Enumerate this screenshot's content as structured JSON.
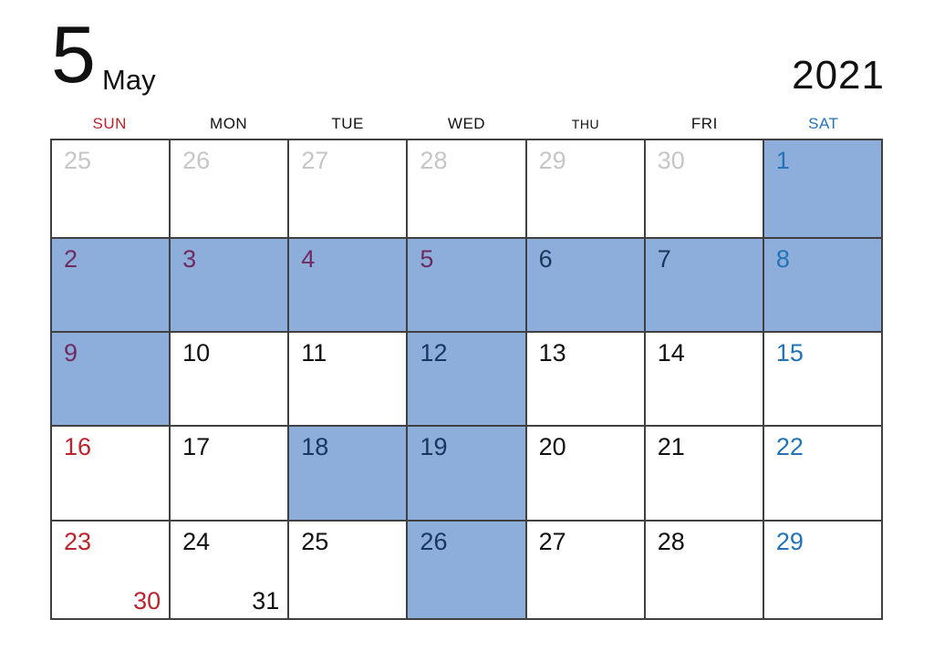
{
  "header": {
    "month_number": "5",
    "month_name": "May",
    "year": "2021"
  },
  "colors": {
    "highlight-bg": "#8dadda",
    "border": "#404040",
    "sunday-red": "#bb232e",
    "saturday-blue": "#2373b9",
    "holiday-purple": "#6f2b60",
    "navy-on-blue": "#17375e",
    "muted-gray": "#c6c6c6",
    "text-black": "#111111"
  },
  "weekdays": [
    {
      "label": "SUN",
      "variant": "sunday",
      "small": false
    },
    {
      "label": "MON",
      "variant": "normal",
      "small": false
    },
    {
      "label": "TUE",
      "variant": "normal",
      "small": false
    },
    {
      "label": "WED",
      "variant": "normal",
      "small": false
    },
    {
      "label": "THU",
      "variant": "normal",
      "small": true
    },
    {
      "label": "FRI",
      "variant": "normal",
      "small": false
    },
    {
      "label": "SAT",
      "variant": "saturday",
      "small": false
    }
  ],
  "weeks": [
    [
      {
        "day": "25",
        "variant": "muted",
        "highlighted": false
      },
      {
        "day": "26",
        "variant": "muted",
        "highlighted": false
      },
      {
        "day": "27",
        "variant": "muted",
        "highlighted": false
      },
      {
        "day": "28",
        "variant": "muted",
        "highlighted": false
      },
      {
        "day": "29",
        "variant": "muted",
        "highlighted": false
      },
      {
        "day": "30",
        "variant": "muted",
        "highlighted": false
      },
      {
        "day": "1",
        "variant": "saturday",
        "highlighted": true
      }
    ],
    [
      {
        "day": "2",
        "variant": "holiday",
        "highlighted": true
      },
      {
        "day": "3",
        "variant": "holiday",
        "highlighted": true
      },
      {
        "day": "4",
        "variant": "holiday",
        "highlighted": true
      },
      {
        "day": "5",
        "variant": "holiday",
        "highlighted": true
      },
      {
        "day": "6",
        "variant": "navy",
        "highlighted": true
      },
      {
        "day": "7",
        "variant": "navy",
        "highlighted": true
      },
      {
        "day": "8",
        "variant": "saturday",
        "highlighted": true
      }
    ],
    [
      {
        "day": "9",
        "variant": "holiday",
        "highlighted": true
      },
      {
        "day": "10",
        "variant": "normal",
        "highlighted": false
      },
      {
        "day": "11",
        "variant": "normal",
        "highlighted": false
      },
      {
        "day": "12",
        "variant": "navy",
        "highlighted": true
      },
      {
        "day": "13",
        "variant": "normal",
        "highlighted": false
      },
      {
        "day": "14",
        "variant": "normal",
        "highlighted": false
      },
      {
        "day": "15",
        "variant": "saturday",
        "highlighted": false
      }
    ],
    [
      {
        "day": "16",
        "variant": "sunday",
        "highlighted": false
      },
      {
        "day": "17",
        "variant": "normal",
        "highlighted": false
      },
      {
        "day": "18",
        "variant": "navy",
        "highlighted": true
      },
      {
        "day": "19",
        "variant": "navy",
        "highlighted": true
      },
      {
        "day": "20",
        "variant": "normal",
        "highlighted": false
      },
      {
        "day": "21",
        "variant": "normal",
        "highlighted": false
      },
      {
        "day": "22",
        "variant": "saturday",
        "highlighted": false
      }
    ],
    [
      {
        "day": "23",
        "variant": "sunday",
        "highlighted": false,
        "extra": {
          "day": "30",
          "variant": "sunday"
        }
      },
      {
        "day": "24",
        "variant": "normal",
        "highlighted": false,
        "extra": {
          "day": "31",
          "variant": "normal"
        }
      },
      {
        "day": "25",
        "variant": "normal",
        "highlighted": false
      },
      {
        "day": "26",
        "variant": "navy",
        "highlighted": true
      },
      {
        "day": "27",
        "variant": "normal",
        "highlighted": false
      },
      {
        "day": "28",
        "variant": "normal",
        "highlighted": false
      },
      {
        "day": "29",
        "variant": "saturday",
        "highlighted": false
      }
    ]
  ]
}
